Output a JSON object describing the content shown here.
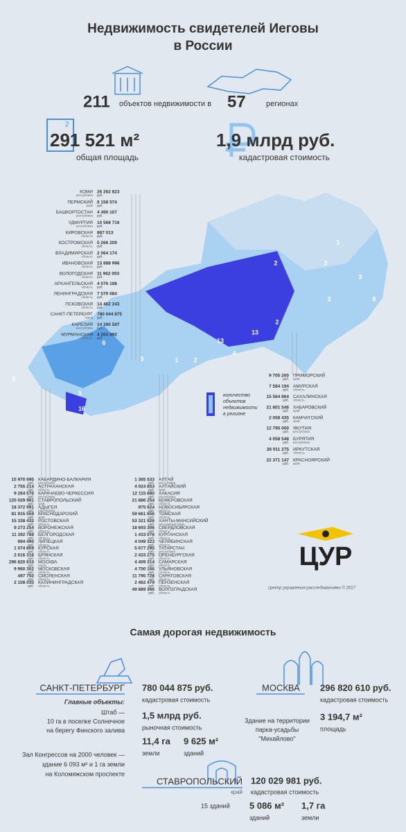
{
  "header": {
    "title_lines": [
      "Недвижимость свидетелей Иеговы",
      "в России"
    ]
  },
  "stats": {
    "objects": "211",
    "objects_text": "объектов недвижимости в",
    "regions": "57",
    "regions_text": "регионах",
    "area": "291 521 м²",
    "area_badge": "2",
    "area_text": "общая площадь",
    "value": "1,9 млрд руб.",
    "value_text": "кадастровая стоимость"
  },
  "map": {
    "currency": "руб.",
    "counts": [
      "1",
      "2",
      "3",
      "3",
      "3",
      "6",
      "2",
      "2",
      "13",
      "13",
      "6",
      "4",
      "5",
      "3",
      "16",
      "2",
      "1"
    ],
    "legend_lines": [
      "количество",
      "объектов",
      "недвижимости",
      "в регионе"
    ],
    "north_list": [
      {
        "name": "КОМИ",
        "sub": "республика",
        "value": "26 262 823"
      },
      {
        "name": "ПЕРМСКИЙ",
        "sub": "край",
        "value": "6 158 574"
      },
      {
        "name": "БАШКОРТОСТАН",
        "sub": "республика",
        "value": "4 490 107"
      },
      {
        "name": "УДМУРТИЯ",
        "sub": "республика",
        "value": "10 568 716"
      },
      {
        "name": "КИРОВСКАЯ",
        "sub": "область",
        "value": "887 013"
      },
      {
        "name": "КОСТРОМСКАЯ",
        "sub": "область",
        "value": "5 266 209"
      },
      {
        "name": "ВЛАДИМИРСКАЯ",
        "sub": "область",
        "value": "2 064 174"
      },
      {
        "name": "ИВАНОВСКАЯ",
        "sub": "область",
        "value": "13 888 996"
      },
      {
        "name": "ВОЛОГОДСКАЯ",
        "sub": "область",
        "value": "11 962 003"
      },
      {
        "name": "АРХАНГЕЛЬСКАЯ",
        "sub": "область",
        "value": "4 076 198"
      },
      {
        "name": "ЛЕНИНГРАДСКАЯ",
        "sub": "область",
        "value": "7 570 084"
      },
      {
        "name": "ПСКОВСКАЯ",
        "sub": "область",
        "value": "14 462 243"
      },
      {
        "name": "САНКТ-ПЕТЕРБУРГ",
        "sub": "город",
        "value": "780 044 875"
      },
      {
        "name": "КАРЕЛИЯ",
        "sub": "республика",
        "value": "14 390 597"
      },
      {
        "name": "МУРМАНСКАЯ",
        "sub": "область",
        "value": "4 203 892"
      }
    ],
    "east_list": [
      {
        "name": "ПРИМОРСКИЙ",
        "sub": "край",
        "value": "9 705 200"
      },
      {
        "name": "АМУРСКАЯ",
        "sub": "область",
        "value": "7 584 194"
      },
      {
        "name": "САХАЛИНСКАЯ",
        "sub": "область",
        "value": "15 564 864"
      },
      {
        "name": "ХАБАРОВСКИЙ",
        "sub": "край",
        "value": "21 801 546"
      },
      {
        "name": "КАМЧАТСКИЙ",
        "sub": "край",
        "value": "2 058 435"
      },
      {
        "name": "ЯКУТИЯ",
        "sub": "республика",
        "value": "12 795 000"
      },
      {
        "name": "БУРЯТИЯ",
        "sub": "республика",
        "value": "4 058 548"
      },
      {
        "name": "ИРКУТСКАЯ",
        "sub": "область",
        "value": "28 911 275"
      },
      {
        "name": "КРАСНОЯРСКИЙ",
        "sub": "край",
        "value": "22 371 147"
      }
    ],
    "south_list": [
      {
        "name": "КАБАРДИНО-БАЛКАРИЯ",
        "sub": "республика",
        "value": "15 970 695"
      },
      {
        "name": "АСТРАХАНСКАЯ",
        "sub": "область",
        "value": "2 755 214"
      },
      {
        "name": "КАРАЧАЕВО-ЧЕРКЕССИЯ",
        "sub": "республика",
        "value": "9 264 576"
      },
      {
        "name": "СТАВРОПОЛЬСКИЙ",
        "sub": "край",
        "value": "120 029 981"
      },
      {
        "name": "АДЫГЕЯ",
        "sub": "республика",
        "value": "18 372 991"
      },
      {
        "name": "КРАСНОДАРСКИЙ",
        "sub": "край",
        "value": "81 915 559"
      },
      {
        "name": "РОСТОВСКАЯ",
        "sub": "область",
        "value": "15 338 432"
      },
      {
        "name": "ВОРОНЕЖСКАЯ",
        "sub": "область",
        "value": "9 273 254"
      },
      {
        "name": "БЕЛГОРОДСКАЯ",
        "sub": "область",
        "value": "11 392 788"
      },
      {
        "name": "ЛИПЕЦКАЯ",
        "sub": "область",
        "value": "994 490"
      },
      {
        "name": "КУРСКАЯ",
        "sub": "область",
        "value": "1 074 809"
      },
      {
        "name": "БРЯНСКАЯ",
        "sub": "область",
        "value": "2 616 316"
      },
      {
        "name": "МОСКВА",
        "sub": "город",
        "value": "296 820 610"
      },
      {
        "name": "МОСКОВСКАЯ",
        "sub": "область",
        "value": "9 960 302"
      },
      {
        "name": "СМОЛЕНСКАЯ",
        "sub": "область",
        "value": "497 750"
      },
      {
        "name": "КАЛИНИНГРАДСКАЯ",
        "sub": "область",
        "value": "2 108 035"
      }
    ],
    "central_list": [
      {
        "name": "АЛТАЙ",
        "sub": "республика",
        "value": "1 365 533"
      },
      {
        "name": "АЛТАЙСКИЙ",
        "sub": "край",
        "value": "4 024 853"
      },
      {
        "name": "ХАКАСИЯ",
        "sub": "республика",
        "value": "12 115 680"
      },
      {
        "name": "КЕМЕРОВСКАЯ",
        "sub": "область",
        "value": "21 886 254"
      },
      {
        "name": "НОВОСИБИРСКАЯ",
        "sub": "область",
        "value": "975 624"
      },
      {
        "name": "ТОМСКАЯ",
        "sub": "область",
        "value": "59 661 656"
      },
      {
        "name": "ХАНТЫ-МАНСИЙСКИЙ",
        "sub": "автономный округ",
        "value": "53 321 926"
      },
      {
        "name": "СВЕРДЛОВСКАЯ",
        "sub": "область",
        "value": "18 693 306"
      },
      {
        "name": "КУРГАНСКАЯ",
        "sub": "область",
        "value": "1 433 076"
      },
      {
        "name": "ЧЕЛЯБИНСКАЯ",
        "sub": "область",
        "value": "4 049 323"
      },
      {
        "name": "ТАТАРСТАН",
        "sub": "республика",
        "value": "5 677 295"
      },
      {
        "name": "ОРЕНБУРГСКАЯ",
        "sub": "область",
        "value": "2 433 275"
      },
      {
        "name": "САМАРСКАЯ",
        "sub": "область",
        "value": "4 409 314"
      },
      {
        "name": "УЛЬЯНОВСКАЯ",
        "sub": "область",
        "value": "4 750 166"
      },
      {
        "name": "САРАТОВСКАЯ",
        "sub": "область",
        "value": "11 795 728"
      },
      {
        "name": "ПЕНЗЕНСКАЯ",
        "sub": "область",
        "value": "2 462 479"
      },
      {
        "name": "ВОЛГОГРАДСКАЯ",
        "sub": "область",
        "value": "49 889 366"
      }
    ]
  },
  "logo": {
    "text": "ЦУР",
    "credit": "Центр управления расследованиями © 2017"
  },
  "expensive": {
    "title": "Самая дорогая недвижимость",
    "spb": {
      "city": "САНКТ-ПЕТЕРБУРГ",
      "cadastral": "780 044 875 руб.",
      "cadastral_text": "кадастровая стоимость",
      "main_label": "Главные объекты:",
      "hq_lines": [
        "Штаб —",
        "10 га в поселке Солнечное",
        "на берегу Финского залива"
      ],
      "market": "1,5 млрд руб.",
      "market_text": "рыночная стоимость",
      "land": "11,4 га",
      "land_text": "земли",
      "buildings": "9 625 м²",
      "buildings_text": "зданий",
      "hall_lines": [
        "Зал Конгрессов на 2000 человек —",
        "здание 6 093 м² и 1 га земли",
        "на Коломяжском проспекте"
      ]
    },
    "moscow": {
      "city": "МОСКВА",
      "cadastral": "296 820 610 руб.",
      "cadastral_text": "кадастровая стоимость",
      "desc_lines": [
        "Здание на территории",
        "парка-усадьбы",
        "\"Михайлово\""
      ],
      "area": "3 194,7 м²",
      "area_text": "площадь"
    },
    "stavropol": {
      "city": "СТАВРОПОЛЬСКИЙ",
      "sub": "край",
      "cadastral": "120 029 981 руб.",
      "cadastral_text": "кадастровая стоимость",
      "count": "15 зданий",
      "area": "5 086 м²",
      "area_text": "зданий",
      "land": "1,7 га",
      "land_text": "земли"
    }
  }
}
